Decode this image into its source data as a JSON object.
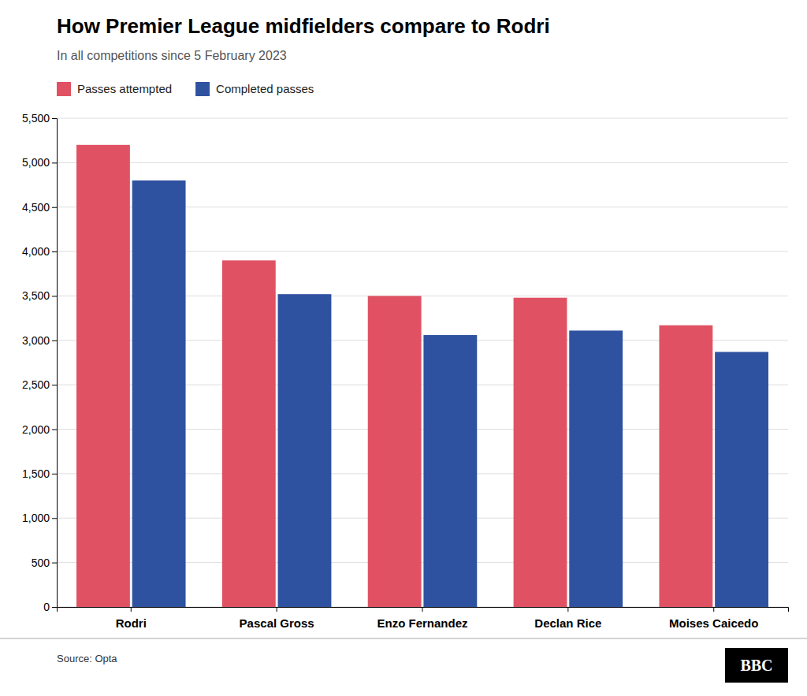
{
  "chart_data": {
    "type": "bar",
    "title": "How Premier League midfielders compare to Rodri",
    "subtitle": "In all competitions since 5 February 2023",
    "categories": [
      "Rodri",
      "Pascal Gross",
      "Enzo Fernandez",
      "Declan Rice",
      "Moises Caicedo"
    ],
    "series": [
      {
        "name": "Passes attempted",
        "color": "#e05263",
        "values": [
          5200,
          3900,
          3500,
          3480,
          3170
        ]
      },
      {
        "name": "Completed passes",
        "color": "#2f52a0",
        "values": [
          4800,
          3520,
          3060,
          3110,
          2870
        ]
      }
    ],
    "ylim": [
      0,
      5500
    ],
    "yticks": [
      0,
      500,
      {
        "value": 1000,
        "label": "1,000"
      },
      {
        "value": 1500,
        "label": "1,500"
      },
      {
        "value": 2000,
        "label": "2,000"
      },
      {
        "value": 2500,
        "label": "2,500"
      },
      {
        "value": 3000,
        "label": "3,000"
      },
      {
        "value": 3500,
        "label": "3,500"
      },
      {
        "value": 4000,
        "label": "4,000"
      },
      {
        "value": 4500,
        "label": "4,500"
      },
      {
        "value": 5000,
        "label": "5,000"
      },
      {
        "value": 5500,
        "label": "5,500"
      }
    ],
    "grid": true,
    "legend": "top-left",
    "annotations": [
      "Source: Opta",
      "BBC"
    ]
  }
}
